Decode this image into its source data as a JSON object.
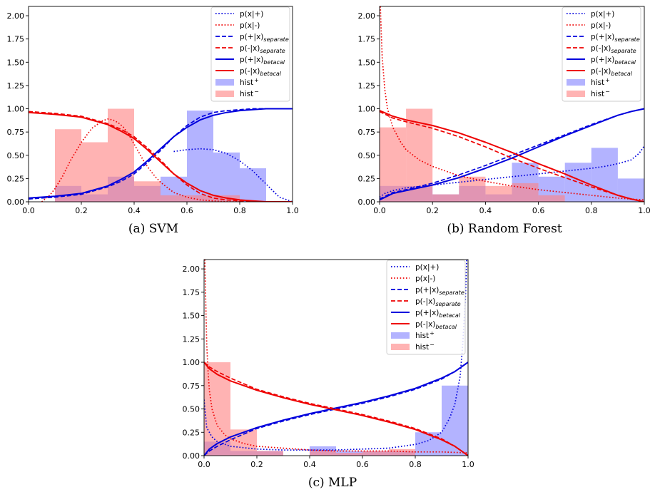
{
  "legend_labels": [
    {
      "key": "px_pos",
      "base": "p(x|+)",
      "sub": "",
      "sup": ""
    },
    {
      "key": "px_neg",
      "base": "p(x|-)",
      "sub": "",
      "sup": ""
    },
    {
      "key": "pp_sep",
      "base": "p(+|x)",
      "sub": "separate",
      "sup": ""
    },
    {
      "key": "pn_sep",
      "base": "p(-|x)",
      "sub": "separate",
      "sup": ""
    },
    {
      "key": "pp_bc",
      "base": "p(+|x)",
      "sub": "betacal",
      "sup": ""
    },
    {
      "key": "pn_bc",
      "base": "p(-|x)",
      "sub": "betacal",
      "sup": ""
    },
    {
      "key": "hist_pos",
      "base": "hist",
      "sub": "",
      "sup": "+"
    },
    {
      "key": "hist_neg",
      "base": "hist",
      "sub": "",
      "sup": "−"
    }
  ],
  "styles": {
    "blue": "#0000dd",
    "red": "#ee0000",
    "hist_pos_color": "#8080ff",
    "hist_neg_color": "#ff8080",
    "hist_alpha": 0.6
  },
  "chart_data": [
    {
      "type": "line",
      "caption": "(a) SVM",
      "xlim": [
        0,
        1
      ],
      "ylim": [
        0,
        2.1
      ],
      "xticks": [
        "0.0",
        "0.2",
        "0.4",
        "0.6",
        "0.8",
        "1.0"
      ],
      "yticks": [
        "0.00",
        "0.25",
        "0.50",
        "0.75",
        "1.00",
        "1.25",
        "1.50",
        "1.75",
        "2.00"
      ],
      "bin_edges": [
        0.1,
        0.2,
        0.3,
        0.4,
        0.5,
        0.6,
        0.7,
        0.8,
        0.9,
        1.0
      ],
      "hist_pos": [
        0.17,
        0.08,
        0.27,
        0.17,
        0.27,
        0.98,
        0.53,
        0.36,
        0.0
      ],
      "hist_neg": [
        0.78,
        0.64,
        1.0,
        0.22,
        0.07,
        0.07,
        0.07,
        0.0,
        0.0
      ],
      "series": [
        {
          "key": "px_pos",
          "x": [
            0.55,
            0.6,
            0.65,
            0.7,
            0.75,
            0.8,
            0.85,
            0.9,
            0.95,
            1.0
          ],
          "y": [
            0.54,
            0.56,
            0.57,
            0.56,
            0.52,
            0.44,
            0.33,
            0.19,
            0.05,
            0.0
          ]
        },
        {
          "key": "px_neg",
          "x": [
            0.05,
            0.08,
            0.1,
            0.13,
            0.16,
            0.2,
            0.24,
            0.28,
            0.3,
            0.32,
            0.34,
            0.36,
            0.38,
            0.4,
            0.42,
            0.44,
            0.46,
            0.48,
            0.5,
            0.55,
            0.6,
            0.65,
            0.7,
            0.75,
            0.8
          ],
          "y": [
            0.0,
            0.07,
            0.14,
            0.28,
            0.45,
            0.64,
            0.79,
            0.87,
            0.89,
            0.88,
            0.85,
            0.8,
            0.72,
            0.62,
            0.52,
            0.42,
            0.34,
            0.27,
            0.21,
            0.1,
            0.05,
            0.02,
            0.01,
            0.0,
            0.0
          ]
        },
        {
          "key": "pp_sep",
          "x": [
            0.0,
            0.1,
            0.2,
            0.3,
            0.35,
            0.4,
            0.45,
            0.5,
            0.55,
            0.6,
            0.65,
            0.7,
            0.75,
            0.8,
            0.85,
            0.9,
            0.95,
            1.0
          ],
          "y": [
            0.03,
            0.05,
            0.08,
            0.16,
            0.22,
            0.3,
            0.42,
            0.55,
            0.7,
            0.82,
            0.91,
            0.96,
            0.98,
            0.99,
            1.0,
            1.0,
            1.0,
            1.0
          ]
        },
        {
          "key": "pn_sep",
          "x": [
            0.0,
            0.1,
            0.2,
            0.3,
            0.35,
            0.4,
            0.45,
            0.5,
            0.55,
            0.6,
            0.65,
            0.7,
            0.75,
            0.8,
            0.85,
            0.9,
            0.95,
            1.0
          ],
          "y": [
            0.97,
            0.95,
            0.92,
            0.84,
            0.78,
            0.7,
            0.58,
            0.45,
            0.3,
            0.18,
            0.09,
            0.04,
            0.02,
            0.01,
            0.0,
            0.0,
            0.0,
            0.0
          ]
        },
        {
          "key": "pp_bc",
          "x": [
            0.0,
            0.1,
            0.2,
            0.3,
            0.35,
            0.4,
            0.45,
            0.5,
            0.55,
            0.6,
            0.65,
            0.7,
            0.75,
            0.8,
            0.85,
            0.9,
            0.95,
            1.0
          ],
          "y": [
            0.04,
            0.06,
            0.09,
            0.17,
            0.24,
            0.32,
            0.44,
            0.57,
            0.7,
            0.8,
            0.88,
            0.93,
            0.96,
            0.98,
            0.99,
            1.0,
            1.0,
            1.0
          ]
        },
        {
          "key": "pn_bc",
          "x": [
            0.0,
            0.1,
            0.2,
            0.3,
            0.35,
            0.4,
            0.45,
            0.5,
            0.55,
            0.6,
            0.65,
            0.7,
            0.75,
            0.8,
            0.85,
            0.9,
            0.95,
            1.0
          ],
          "y": [
            0.96,
            0.94,
            0.91,
            0.83,
            0.76,
            0.68,
            0.56,
            0.43,
            0.3,
            0.2,
            0.12,
            0.07,
            0.04,
            0.02,
            0.01,
            0.0,
            0.0,
            0.0
          ]
        }
      ]
    },
    {
      "type": "line",
      "caption": "(b) Random Forest",
      "xlim": [
        0,
        1
      ],
      "ylim": [
        0,
        2.1
      ],
      "xticks": [
        "0.0",
        "0.2",
        "0.4",
        "0.6",
        "0.8",
        "1.0"
      ],
      "yticks": [
        "0.00",
        "0.25",
        "0.50",
        "0.75",
        "1.00",
        "1.25",
        "1.50",
        "1.75",
        "2.00"
      ],
      "bin_edges": [
        0.0,
        0.1,
        0.2,
        0.3,
        0.4,
        0.5,
        0.6,
        0.7,
        0.8,
        0.9,
        1.0
      ],
      "hist_pos": [
        0.17,
        0.17,
        0.08,
        0.17,
        0.08,
        0.42,
        0.27,
        0.42,
        0.58,
        0.25
      ],
      "hist_neg": [
        0.8,
        1.0,
        0.08,
        0.27,
        0.17,
        0.2,
        0.07,
        0.0,
        0.0,
        0.0
      ],
      "series": [
        {
          "key": "px_pos",
          "x": [
            0.0,
            0.02,
            0.05,
            0.1,
            0.2,
            0.3,
            0.4,
            0.5,
            0.6,
            0.7,
            0.8,
            0.85,
            0.9,
            0.95,
            0.98,
            1.0
          ],
          "y": [
            0.05,
            0.09,
            0.12,
            0.15,
            0.18,
            0.21,
            0.24,
            0.27,
            0.3,
            0.33,
            0.36,
            0.38,
            0.41,
            0.45,
            0.52,
            0.6
          ]
        },
        {
          "key": "px_neg",
          "x": [
            0.003,
            0.006,
            0.01,
            0.02,
            0.03,
            0.05,
            0.08,
            0.1,
            0.15,
            0.2,
            0.3,
            0.4,
            0.5,
            0.6,
            0.7,
            0.8,
            0.9,
            1.0
          ],
          "y": [
            2.1,
            1.85,
            1.55,
            1.2,
            1.0,
            0.8,
            0.64,
            0.56,
            0.45,
            0.38,
            0.28,
            0.22,
            0.17,
            0.13,
            0.1,
            0.07,
            0.04,
            0.02
          ]
        },
        {
          "key": "pp_sep",
          "x": [
            0.0,
            0.05,
            0.1,
            0.2,
            0.3,
            0.4,
            0.5,
            0.6,
            0.7,
            0.8,
            0.9,
            0.95,
            1.0
          ],
          "y": [
            0.03,
            0.1,
            0.13,
            0.2,
            0.29,
            0.39,
            0.5,
            0.61,
            0.72,
            0.83,
            0.93,
            0.97,
            1.0
          ]
        },
        {
          "key": "pn_sep",
          "x": [
            0.0,
            0.05,
            0.1,
            0.2,
            0.3,
            0.4,
            0.5,
            0.6,
            0.7,
            0.8,
            0.9,
            0.95,
            1.0
          ],
          "y": [
            0.97,
            0.9,
            0.86,
            0.79,
            0.7,
            0.59,
            0.47,
            0.36,
            0.26,
            0.16,
            0.07,
            0.03,
            0.0
          ]
        },
        {
          "key": "pp_bc",
          "x": [
            0.0,
            0.05,
            0.1,
            0.2,
            0.3,
            0.4,
            0.5,
            0.6,
            0.7,
            0.8,
            0.9,
            0.95,
            1.0
          ],
          "y": [
            0.02,
            0.09,
            0.12,
            0.18,
            0.26,
            0.36,
            0.47,
            0.59,
            0.71,
            0.82,
            0.93,
            0.97,
            1.0
          ]
        },
        {
          "key": "pn_bc",
          "x": [
            0.0,
            0.05,
            0.1,
            0.2,
            0.3,
            0.4,
            0.5,
            0.6,
            0.7,
            0.8,
            0.9,
            0.95,
            1.0
          ],
          "y": [
            0.98,
            0.92,
            0.88,
            0.82,
            0.74,
            0.64,
            0.53,
            0.41,
            0.3,
            0.18,
            0.07,
            0.03,
            0.0
          ]
        }
      ]
    },
    {
      "type": "line",
      "caption": "(c) MLP",
      "xlim": [
        0,
        1
      ],
      "ylim": [
        0,
        2.1
      ],
      "xticks": [
        "0.0",
        "0.2",
        "0.4",
        "0.6",
        "0.8",
        "1.0"
      ],
      "yticks": [
        "0.00",
        "0.25",
        "0.50",
        "0.75",
        "1.00",
        "1.25",
        "1.50",
        "1.75",
        "2.00"
      ],
      "bin_edges": [
        0.0,
        0.1,
        0.2,
        0.3,
        0.4,
        0.5,
        0.6,
        0.7,
        0.8,
        0.9,
        1.0
      ],
      "hist_pos": [
        0.15,
        0.05,
        0.05,
        0.0,
        0.1,
        0.05,
        0.05,
        0.05,
        0.25,
        0.75
      ],
      "hist_neg": [
        1.0,
        0.28,
        0.05,
        0.0,
        0.05,
        0.03,
        0.05,
        0.07,
        0.0,
        0.0
      ],
      "series": [
        {
          "key": "px_pos",
          "x": [
            0.0,
            0.01,
            0.03,
            0.05,
            0.1,
            0.2,
            0.3,
            0.4,
            0.5,
            0.6,
            0.7,
            0.8,
            0.85,
            0.9,
            0.93,
            0.95,
            0.97,
            0.98,
            0.99,
            0.995,
            1.0
          ],
          "y": [
            0.6,
            0.3,
            0.2,
            0.15,
            0.1,
            0.07,
            0.06,
            0.06,
            0.06,
            0.07,
            0.08,
            0.12,
            0.16,
            0.25,
            0.4,
            0.55,
            0.85,
            1.2,
            1.7,
            2.1,
            2.1
          ]
        },
        {
          "key": "px_neg",
          "x": [
            0.003,
            0.006,
            0.01,
            0.015,
            0.02,
            0.03,
            0.05,
            0.08,
            0.1,
            0.15,
            0.2,
            0.3,
            0.4,
            0.5,
            0.6,
            0.7,
            0.8,
            0.9,
            1.0
          ],
          "y": [
            2.1,
            1.7,
            1.2,
            0.9,
            0.7,
            0.5,
            0.32,
            0.22,
            0.18,
            0.13,
            0.1,
            0.08,
            0.06,
            0.05,
            0.05,
            0.05,
            0.04,
            0.04,
            0.03
          ]
        },
        {
          "key": "pp_sep",
          "x": [
            0.0,
            0.02,
            0.05,
            0.1,
            0.2,
            0.3,
            0.4,
            0.5,
            0.6,
            0.7,
            0.8,
            0.9,
            0.95,
            1.0
          ],
          "y": [
            0.0,
            0.05,
            0.1,
            0.17,
            0.29,
            0.37,
            0.44,
            0.5,
            0.56,
            0.63,
            0.71,
            0.82,
            0.9,
            1.0
          ]
        },
        {
          "key": "pn_sep",
          "x": [
            0.0,
            0.02,
            0.05,
            0.1,
            0.2,
            0.3,
            0.4,
            0.5,
            0.6,
            0.7,
            0.8,
            0.9,
            0.95,
            1.0
          ],
          "y": [
            1.0,
            0.95,
            0.9,
            0.83,
            0.71,
            0.63,
            0.56,
            0.5,
            0.44,
            0.37,
            0.29,
            0.18,
            0.1,
            0.0
          ]
        },
        {
          "key": "pp_bc",
          "x": [
            0.0,
            0.02,
            0.05,
            0.1,
            0.2,
            0.3,
            0.4,
            0.5,
            0.6,
            0.7,
            0.8,
            0.9,
            0.95,
            1.0
          ],
          "y": [
            0.0,
            0.07,
            0.13,
            0.2,
            0.3,
            0.38,
            0.45,
            0.51,
            0.57,
            0.64,
            0.72,
            0.83,
            0.9,
            1.0
          ]
        },
        {
          "key": "pn_bc",
          "x": [
            0.0,
            0.02,
            0.05,
            0.1,
            0.2,
            0.3,
            0.4,
            0.5,
            0.6,
            0.7,
            0.8,
            0.9,
            0.95,
            1.0
          ],
          "y": [
            1.0,
            0.93,
            0.87,
            0.8,
            0.7,
            0.62,
            0.55,
            0.49,
            0.43,
            0.36,
            0.28,
            0.17,
            0.1,
            0.0
          ]
        }
      ]
    }
  ]
}
